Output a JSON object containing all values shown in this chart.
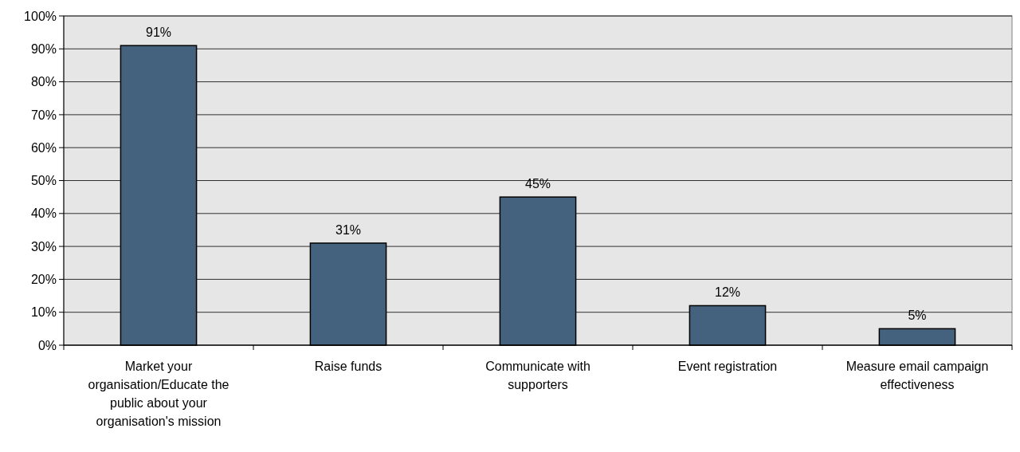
{
  "chart_data": {
    "type": "bar",
    "categories": [
      "Market your organisation/Educate the public about your organisation's mission",
      "Raise funds",
      "Communicate with supporters",
      "Event registration",
      "Measure email campaign effectiveness"
    ],
    "values": [
      91,
      31,
      45,
      12,
      5
    ],
    "color": "#44627d",
    "value_labels": [
      "91%",
      "31%",
      "45%",
      "12%",
      "5%"
    ],
    "ylim": [
      0,
      100
    ],
    "yticks": [
      {
        "value": 0,
        "label": "0%"
      },
      {
        "value": 10,
        "label": "10%"
      },
      {
        "value": 20,
        "label": "20%"
      },
      {
        "value": 30,
        "label": "30%"
      },
      {
        "value": 40,
        "label": "40%"
      },
      {
        "value": 50,
        "label": "50%"
      },
      {
        "value": 60,
        "label": "60%"
      },
      {
        "value": 70,
        "label": "70%"
      },
      {
        "value": 80,
        "label": "80%"
      },
      {
        "value": 90,
        "label": "90%"
      },
      {
        "value": 100,
        "label": "100%"
      }
    ],
    "grid": "y"
  }
}
